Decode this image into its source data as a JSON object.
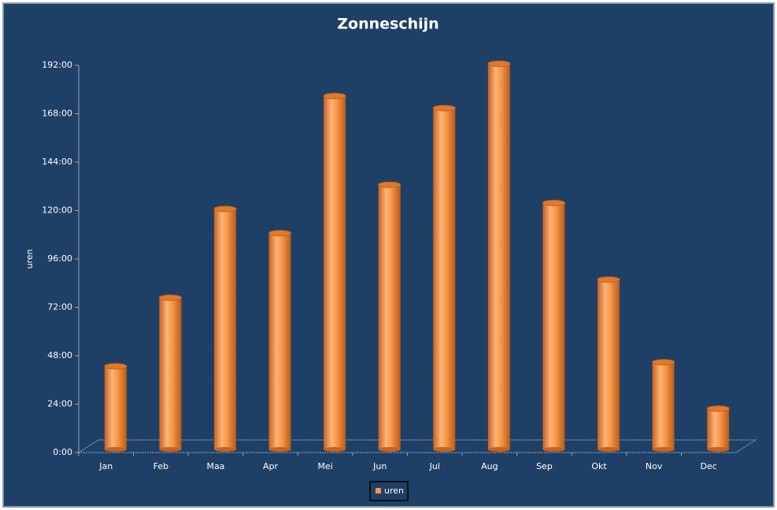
{
  "chart_data": {
    "type": "bar",
    "title": "Zonneschijn",
    "y_label": "uren",
    "categories": [
      "Jan",
      "Feb",
      "Maa",
      "Apr",
      "Mei",
      "Jun",
      "Jul",
      "Aug",
      "Sep",
      "Okt",
      "Nov",
      "Dec"
    ],
    "series": [
      {
        "name": "uren",
        "color": "#f79646",
        "values": [
          42,
          76,
          120,
          108,
          176,
          132,
          170,
          192,
          123,
          85,
          44,
          21
        ]
      }
    ],
    "ylim": [
      0,
      192
    ],
    "yticks": [
      {
        "value": 0,
        "label": "0:00"
      },
      {
        "value": 24,
        "label": "24:00"
      },
      {
        "value": 48,
        "label": "48:00"
      },
      {
        "value": 72,
        "label": "72:00"
      },
      {
        "value": 96,
        "label": "96:00"
      },
      {
        "value": 120,
        "label": "120:00"
      },
      {
        "value": 144,
        "label": "144:00"
      },
      {
        "value": 168,
        "label": "168:00"
      },
      {
        "value": 192,
        "label": "192:00"
      }
    ],
    "grid": false,
    "legend": "bottom"
  }
}
